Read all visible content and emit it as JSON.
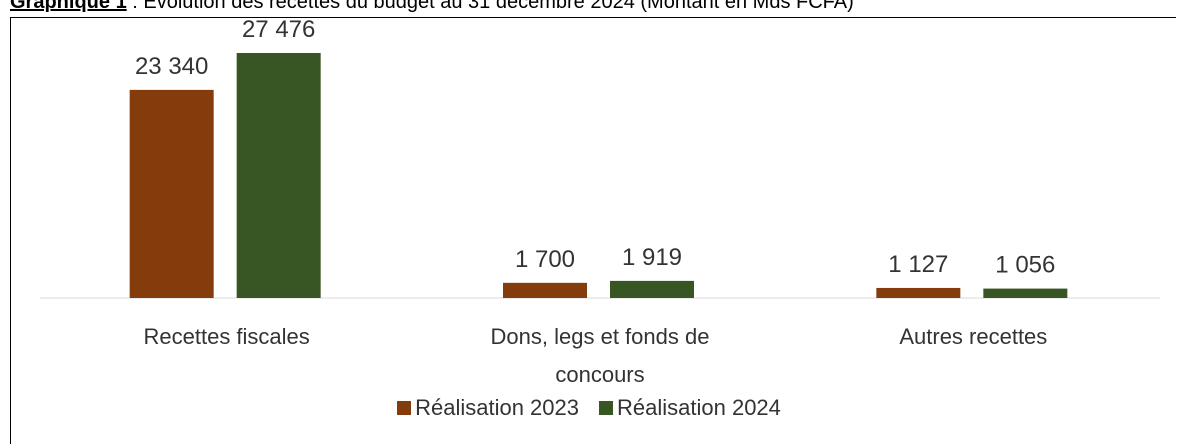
{
  "chart_data": {
    "type": "bar",
    "label": "Graphique 1",
    "title": " : Évolution des recettes du budget au 31 décembre 2024 (Montant en Mds FCFA)",
    "categories": [
      "Recettes fiscales",
      "Dons, legs et fonds de concours",
      "Autres recettes"
    ],
    "series": [
      {
        "name": "Réalisation 2023",
        "color": "#843c0c",
        "values": [
          23340,
          1700,
          1127
        ],
        "value_labels": [
          "23 340",
          "1 700",
          "1 127"
        ]
      },
      {
        "name": "Réalisation 2024",
        "color": "#375623",
        "values": [
          27476,
          1919,
          1056
        ],
        "value_labels": [
          "27 476",
          "1 919",
          "1 056"
        ]
      }
    ],
    "legend": "bottom"
  }
}
